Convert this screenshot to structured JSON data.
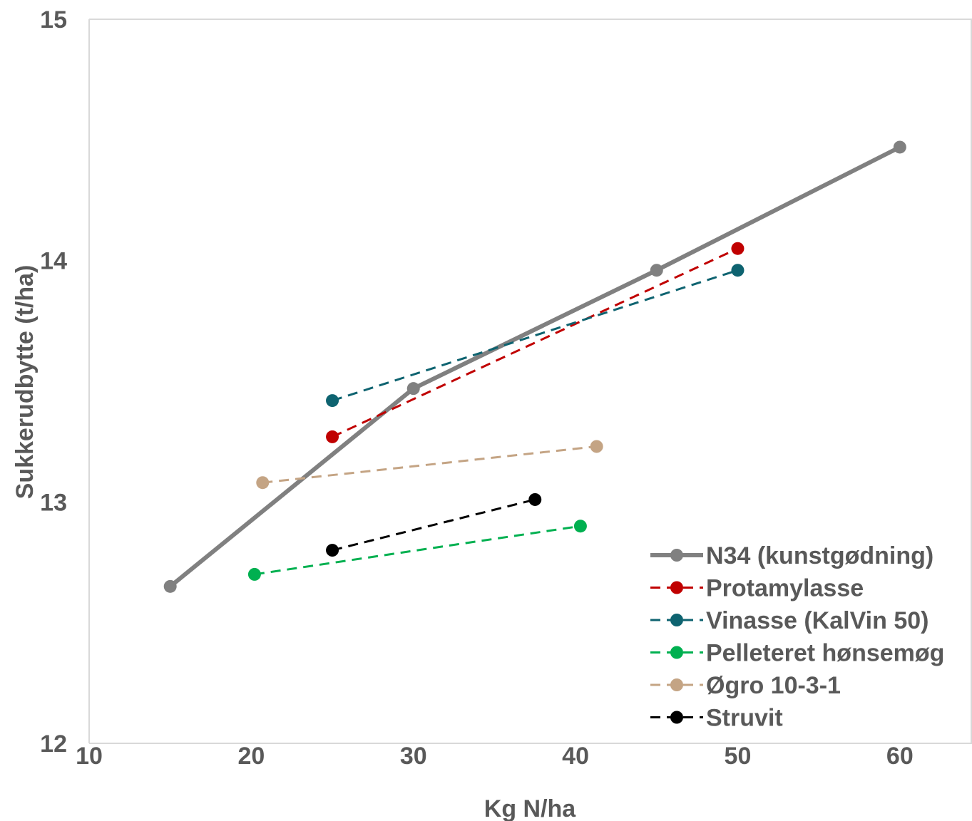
{
  "chart_data": {
    "type": "line",
    "xlabel": "Kg N/ha",
    "ylabel": "Sukkerudbytte (t/ha)",
    "xlim": [
      10,
      64
    ],
    "ylim": [
      12,
      15
    ],
    "xticks": [
      10,
      20,
      30,
      40,
      50,
      60
    ],
    "yticks": [
      12,
      13,
      14,
      15
    ],
    "grid": false,
    "legend_position": "bottom-right",
    "series": [
      {
        "name": "N34 (kunstgødning)",
        "color": "#808080",
        "style": "solid",
        "x": [
          15,
          30,
          45,
          60
        ],
        "y": [
          12.65,
          13.47,
          13.96,
          14.47
        ]
      },
      {
        "name": "Protamylasse",
        "color": "#c00000",
        "style": "dashed",
        "x": [
          25,
          50
        ],
        "y": [
          13.27,
          14.05
        ]
      },
      {
        "name": "Vinasse (KalVin 50)",
        "color": "#0e6370",
        "style": "dashed",
        "x": [
          25,
          50
        ],
        "y": [
          13.42,
          13.96
        ]
      },
      {
        "name": "Pelleteret hønsemøg",
        "color": "#00b050",
        "style": "dashed",
        "x": [
          20.2,
          40.3
        ],
        "y": [
          12.7,
          12.9
        ]
      },
      {
        "name": "Øgro 10-3-1",
        "color": "#c4a484",
        "style": "dashed",
        "x": [
          20.7,
          41.3
        ],
        "y": [
          13.08,
          13.23
        ]
      },
      {
        "name": "Struvit",
        "color": "#000000",
        "style": "dashed",
        "x": [
          25,
          37.5
        ],
        "y": [
          12.8,
          13.01
        ]
      }
    ]
  }
}
